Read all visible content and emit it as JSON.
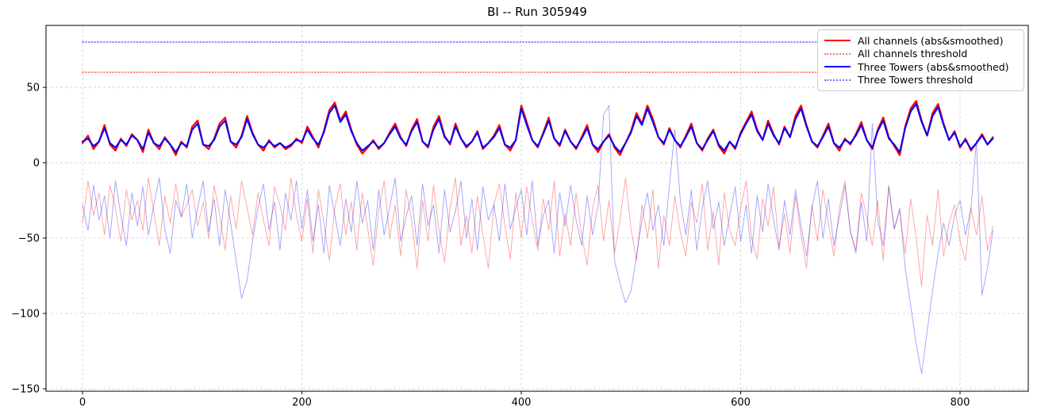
{
  "figure": {
    "title": "BI -- Run 305949",
    "background": "#ffffff"
  },
  "axes": {
    "x_tick_labels": [
      "0",
      "200",
      "400",
      "600",
      "800"
    ],
    "y_tick_labels": [
      "50",
      "0",
      "−50",
      "−100",
      "−150"
    ],
    "grid_color": "#cccccc",
    "spine_color": "#000000",
    "tick_label_color": "#000000"
  },
  "chart_data": {
    "type": "line",
    "title": "BI -- Run 305949",
    "xlabel": "",
    "ylabel": "",
    "xlim": [
      -33.3,
      862.2
    ],
    "ylim": [
      -151.6,
      91.1
    ],
    "x_ticks": [
      0,
      200,
      400,
      600,
      800
    ],
    "y_ticks": [
      50,
      0,
      -50,
      -100,
      -150
    ],
    "grid": true,
    "legend_position": "upper right",
    "x": {
      "start": 0,
      "step": 5,
      "count": 167
    },
    "series": [
      {
        "name": "unlabeled-raw-all-channels",
        "color": "rgba(255,0,0,0.38)",
        "width": 0.9,
        "style": "solid",
        "in_legend": false,
        "values": [
          -40,
          -12,
          -35,
          -20,
          -48,
          -15,
          -30,
          -52,
          -18,
          -38,
          -25,
          -45,
          -10,
          -33,
          -55,
          -22,
          -40,
          -14,
          -36,
          -28,
          -18,
          -42,
          -26,
          -50,
          -15,
          -34,
          -58,
          -22,
          -44,
          -12,
          -30,
          -48,
          -20,
          -38,
          -55,
          -16,
          -28,
          -45,
          -10,
          -35,
          -52,
          -24,
          -60,
          -18,
          -40,
          -65,
          -30,
          -14,
          -48,
          -26,
          -58,
          -20,
          -44,
          -68,
          -32,
          -12,
          -50,
          -28,
          -62,
          -18,
          -38,
          -70,
          -25,
          -52,
          -15,
          -45,
          -66,
          -30,
          -10,
          -55,
          -35,
          -60,
          -22,
          -48,
          -70,
          -28,
          -14,
          -42,
          -64,
          -20,
          -50,
          -16,
          -38,
          -58,
          -24,
          -45,
          -12,
          -62,
          -34,
          -55,
          -20,
          -48,
          -68,
          -30,
          -15,
          -52,
          -25,
          -60,
          -38,
          -10,
          -44,
          -65,
          -28,
          -50,
          -18,
          -70,
          -35,
          -55,
          -22,
          -46,
          -62,
          -26,
          -40,
          -14,
          -58,
          -32,
          -68,
          -20,
          -45,
          -55,
          -30,
          -12,
          -50,
          -64,
          -24,
          -42,
          -16,
          -56,
          -34,
          -60,
          -22,
          -48,
          -70,
          -28,
          -52,
          -18,
          -40,
          -62,
          -30,
          -12,
          -46,
          -58,
          -20,
          -36,
          -55,
          -25,
          -65,
          -15,
          -44,
          -32,
          -60,
          -24,
          -50,
          -82,
          -35,
          -55,
          -18,
          -62,
          -40,
          -28,
          -52,
          -65,
          -30,
          -48,
          -22,
          -58,
          -42
        ]
      },
      {
        "name": "unlabeled-raw-three-towers",
        "color": "rgba(0,0,255,0.38)",
        "width": 0.9,
        "style": "solid",
        "in_legend": false,
        "values": [
          -28,
          -45,
          -15,
          -38,
          -22,
          -50,
          -12,
          -35,
          -55,
          -20,
          -42,
          -16,
          -48,
          -28,
          -10,
          -44,
          -60,
          -25,
          -36,
          -14,
          -50,
          -30,
          -12,
          -46,
          -24,
          -55,
          -18,
          -40,
          -65,
          -90,
          -78,
          -52,
          -30,
          -14,
          -45,
          -26,
          -58,
          -20,
          -38,
          -12,
          -44,
          -18,
          -52,
          -28,
          -60,
          -15,
          -35,
          -55,
          -24,
          -46,
          -12,
          -40,
          -25,
          -58,
          -18,
          -48,
          -30,
          -10,
          -52,
          -36,
          -22,
          -55,
          -14,
          -42,
          -28,
          -60,
          -18,
          -46,
          -32,
          -12,
          -50,
          -24,
          -58,
          -16,
          -38,
          -28,
          -52,
          -14,
          -44,
          -30,
          -18,
          -48,
          -12,
          -55,
          -35,
          -25,
          -60,
          -20,
          -42,
          -15,
          -38,
          -55,
          -22,
          -48,
          -28,
          32,
          38,
          -65,
          -80,
          -93,
          -85,
          -62,
          -38,
          -20,
          -45,
          -28,
          -55,
          -15,
          22,
          -25,
          -48,
          -18,
          -58,
          -30,
          -12,
          -44,
          -26,
          -55,
          -35,
          -16,
          -52,
          -28,
          -60,
          -22,
          -46,
          -14,
          -38,
          -58,
          -25,
          -48,
          -18,
          -42,
          -62,
          -30,
          -12,
          -50,
          -24,
          -55,
          -36,
          -15,
          -45,
          -60,
          -26,
          -52,
          26,
          -38,
          -55,
          -16,
          -44,
          -30,
          -70,
          -95,
          -120,
          -140,
          -112,
          -85,
          -60,
          -40,
          -55,
          -35,
          -25,
          -48,
          -30,
          15,
          -88,
          -70,
          -45
        ]
      },
      {
        "name": "All channels (abs&smoothed)",
        "color": "#ff0000",
        "width": 2.2,
        "style": "solid",
        "in_legend": true,
        "values": [
          13,
          18,
          9,
          14,
          25,
          12,
          8,
          16,
          11,
          19,
          15,
          7,
          22,
          13,
          9,
          17,
          12,
          5,
          14,
          10,
          24,
          28,
          12,
          9,
          16,
          26,
          30,
          14,
          10,
          18,
          31,
          20,
          12,
          8,
          15,
          10,
          13,
          9,
          11,
          16,
          13,
          24,
          17,
          10,
          21,
          35,
          40,
          28,
          34,
          22,
          12,
          6,
          10,
          15,
          9,
          13,
          20,
          26,
          17,
          11,
          22,
          29,
          14,
          10,
          24,
          31,
          18,
          12,
          26,
          16,
          10,
          14,
          21,
          9,
          13,
          18,
          25,
          12,
          8,
          15,
          38,
          27,
          15,
          10,
          20,
          30,
          16,
          11,
          22,
          14,
          9,
          17,
          25,
          12,
          7,
          14,
          19,
          10,
          5,
          13,
          21,
          33,
          26,
          38,
          29,
          17,
          12,
          23,
          15,
          10,
          18,
          26,
          13,
          8,
          16,
          22,
          11,
          6,
          14,
          9,
          20,
          27,
          34,
          22,
          15,
          28,
          19,
          12,
          24,
          17,
          31,
          38,
          25,
          14,
          10,
          18,
          26,
          13,
          8,
          16,
          12,
          19,
          27,
          15,
          9,
          22,
          30,
          17,
          11,
          5,
          24,
          36,
          41,
          28,
          18,
          33,
          39,
          26,
          15,
          21,
          10,
          16,
          8,
          13,
          19,
          12,
          17
        ]
      },
      {
        "name": "Three Towers (abs&smoothed)",
        "color": "#0000ff",
        "width": 2.0,
        "style": "solid",
        "in_legend": true,
        "values": [
          14,
          16,
          11,
          14,
          23,
          13,
          10,
          15,
          12,
          18,
          15,
          9,
          20,
          13,
          11,
          16,
          12,
          7,
          13,
          11,
          22,
          26,
          12,
          11,
          15,
          24,
          28,
          14,
          12,
          17,
          29,
          19,
          12,
          10,
          14,
          11,
          13,
          10,
          12,
          15,
          14,
          22,
          16,
          12,
          20,
          33,
          38,
          27,
          32,
          21,
          13,
          8,
          11,
          14,
          10,
          13,
          19,
          24,
          16,
          12,
          21,
          27,
          14,
          11,
          22,
          29,
          17,
          13,
          24,
          16,
          11,
          14,
          20,
          10,
          13,
          17,
          23,
          12,
          10,
          15,
          36,
          25,
          15,
          11,
          19,
          28,
          16,
          12,
          21,
          14,
          10,
          16,
          23,
          12,
          9,
          14,
          18,
          11,
          7,
          13,
          20,
          31,
          25,
          36,
          27,
          17,
          13,
          22,
          15,
          11,
          17,
          24,
          13,
          9,
          15,
          21,
          12,
          8,
          14,
          10,
          19,
          26,
          32,
          21,
          15,
          26,
          18,
          13,
          23,
          17,
          29,
          36,
          24,
          14,
          11,
          17,
          24,
          13,
          10,
          15,
          13,
          18,
          25,
          15,
          10,
          21,
          28,
          16,
          12,
          7,
          23,
          34,
          39,
          27,
          18,
          31,
          37,
          25,
          15,
          20,
          11,
          15,
          9,
          13,
          18,
          12,
          16
        ]
      },
      {
        "name": "All channels threshold",
        "color": "rgba(255,0,0,0.55)",
        "width": 1.6,
        "style": "dotted",
        "in_legend": true,
        "threshold": 60
      },
      {
        "name": "Three Towers threshold",
        "color": "rgba(0,0,255,0.55)",
        "width": 1.6,
        "style": "dotted",
        "in_legend": true,
        "threshold": 80
      }
    ],
    "legend": {
      "entries": [
        {
          "label": "All channels (abs&smoothed)",
          "color": "#ff0000",
          "style": "solid"
        },
        {
          "label": "All channels threshold",
          "color": "rgba(255,0,0,0.55)",
          "style": "dotted"
        },
        {
          "label": "Three Towers (abs&smoothed)",
          "color": "#0000ff",
          "style": "solid"
        },
        {
          "label": "Three Towers threshold",
          "color": "rgba(0,0,255,0.55)",
          "style": "dotted"
        }
      ]
    }
  }
}
